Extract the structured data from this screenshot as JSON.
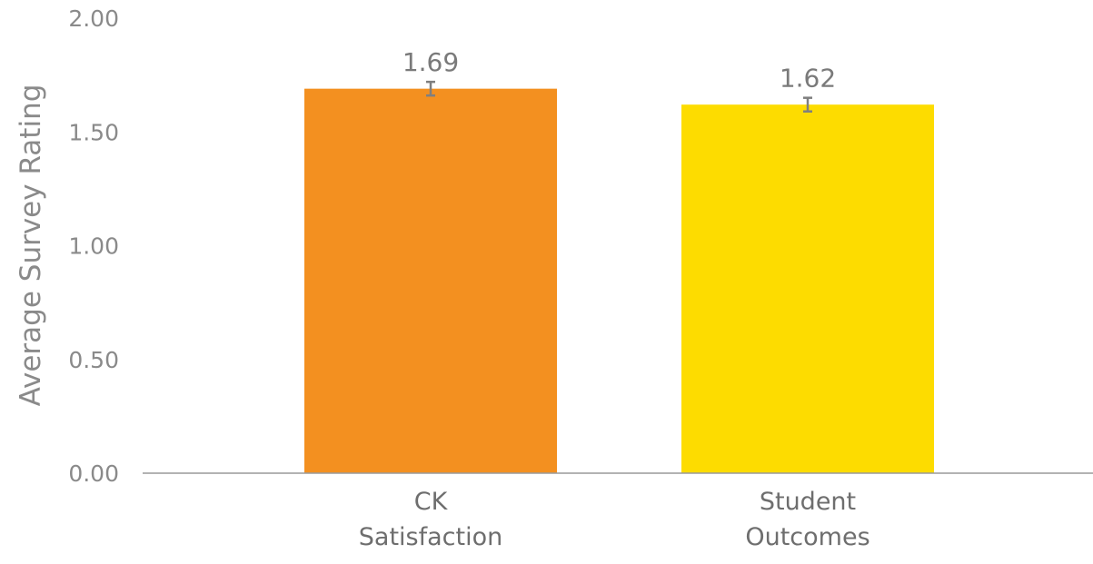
{
  "chart_data": {
    "type": "bar",
    "title": "",
    "xlabel": "",
    "ylabel": "Average Survey Rating",
    "ylim": [
      0,
      2
    ],
    "yticks": [
      "0.00",
      "0.50",
      "1.00",
      "1.50",
      "2.00"
    ],
    "ytick_values": [
      0,
      0.5,
      1,
      1.5,
      2
    ],
    "categories": [
      [
        "CK",
        "Satisfaction"
      ],
      [
        "Student",
        "Outcomes"
      ]
    ],
    "values": [
      1.69,
      1.62
    ],
    "data_labels": [
      "1.69",
      "1.62"
    ],
    "error_bars": [
      [
        1.66,
        1.72
      ],
      [
        1.59,
        1.65
      ]
    ],
    "colors": [
      "#f39020",
      "#fddc00"
    ],
    "axis_color": "#9a9a9a",
    "error_bar_color": "#7f7f7f",
    "grid": false,
    "legend": "none"
  }
}
